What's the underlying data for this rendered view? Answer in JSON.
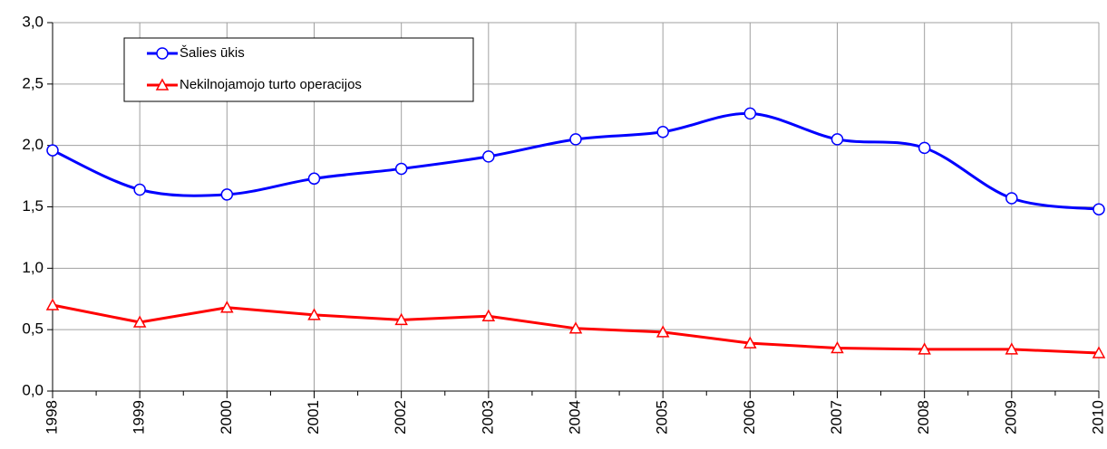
{
  "chart_data": {
    "type": "line",
    "categories": [
      "1998",
      "1999",
      "2000",
      "2001",
      "2002",
      "2003",
      "2004",
      "2005",
      "2006",
      "2007",
      "2008",
      "2009",
      "2010"
    ],
    "series": [
      {
        "name": "Šalies ūkis",
        "color": "#0000ff",
        "marker": "circle",
        "smooth": true,
        "values": [
          1.96,
          1.64,
          1.6,
          1.73,
          1.81,
          1.91,
          2.05,
          2.11,
          2.26,
          2.05,
          1.98,
          1.57,
          1.48
        ]
      },
      {
        "name": "Nekilnojamojo turto operacijos",
        "color": "#ff0000",
        "marker": "triangle",
        "smooth": false,
        "values": [
          0.7,
          0.56,
          0.68,
          0.62,
          0.58,
          0.61,
          0.51,
          0.48,
          0.39,
          0.35,
          0.34,
          0.34,
          0.31
        ]
      }
    ],
    "ylim": [
      0,
      3
    ],
    "yticks": [
      {
        "value": 0,
        "label": "0,0"
      },
      {
        "value": 0.5,
        "label": "0,5"
      },
      {
        "value": 1,
        "label": "1,0"
      },
      {
        "value": 1.5,
        "label": "1,5"
      },
      {
        "value": 2,
        "label": "2,0"
      },
      {
        "value": 2.5,
        "label": "2,5"
      },
      {
        "value": 3,
        "label": "3,0"
      }
    ],
    "grid": true,
    "legend": "upper left"
  }
}
